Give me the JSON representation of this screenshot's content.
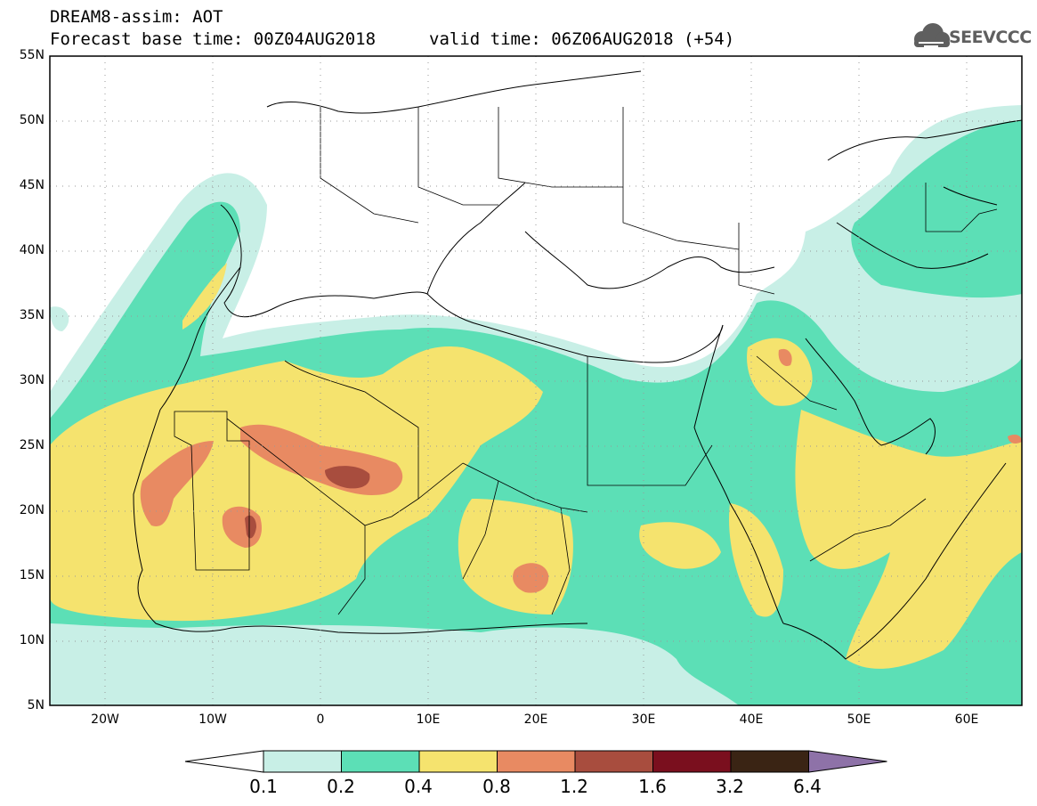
{
  "header": {
    "title_line_1": "DREAM8-assim: AOT",
    "title_line_2": "Forecast base time: 00Z04AUG2018",
    "valid_line": "valid time: 06Z06AUG2018 (+54)",
    "logo_text": "SEEVCCC"
  },
  "map": {
    "lat_labels": [
      "55N",
      "50N",
      "45N",
      "40N",
      "35N",
      "30N",
      "25N",
      "20N",
      "15N",
      "10N",
      "5N"
    ],
    "lon_labels": [
      "20W",
      "10W",
      "0",
      "10E",
      "20E",
      "30E",
      "40E",
      "50E",
      "60E"
    ],
    "extent": {
      "lon_min": -25,
      "lon_max": 65,
      "lat_min": 5,
      "lat_max": 55
    },
    "field": "AOT"
  },
  "legend": {
    "colors": [
      "#ffffff",
      "#c8efe6",
      "#5cdfb6",
      "#f5e36e",
      "#e88a62",
      "#a84d3e",
      "#7a0f1e",
      "#3a2414",
      "#8e72a8"
    ],
    "labels": [
      "0.1",
      "0.2",
      "0.4",
      "0.8",
      "1.2",
      "1.6",
      "3.2",
      "6.4"
    ]
  }
}
